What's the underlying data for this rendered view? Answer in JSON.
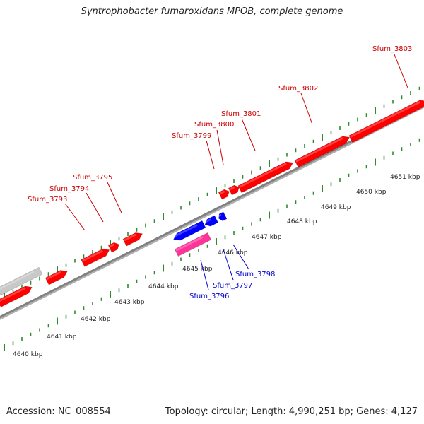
{
  "title": "Syntrophobacter fumaroxidans MPOB, complete genome",
  "footer": {
    "accession": "Accession: NC_008554",
    "summary": "Topology: circular; Length: 4,990,251 bp; Genes: 4,127"
  },
  "colors": {
    "forward_gene": "#ff0000",
    "reverse_gene": "#0000ff",
    "highlight_gene": "#ff3399",
    "grey_feature": "#c8c8c8",
    "backbone": "#808080",
    "tick": "#2e8b2e",
    "forward_label": "#cc0000",
    "reverse_label": "#0000cc"
  },
  "scale_labels": [
    "4640 kbp",
    "4641 kbp",
    "4642 kbp",
    "4643 kbp",
    "4644 kbp",
    "4645 kbp",
    "4646 kbp",
    "4647 kbp",
    "4648 kbp",
    "4649 kbp",
    "4650 kbp",
    "4651 kbp"
  ],
  "forward_gene_labels": [
    "Sfum_3793",
    "Sfum_3794",
    "Sfum_3795",
    "Sfum_3799",
    "Sfum_3800",
    "Sfum_3801",
    "Sfum_3802",
    "Sfum_3803"
  ],
  "reverse_gene_labels": [
    "Sfum_3796",
    "Sfum_3797",
    "Sfum_3798"
  ]
}
